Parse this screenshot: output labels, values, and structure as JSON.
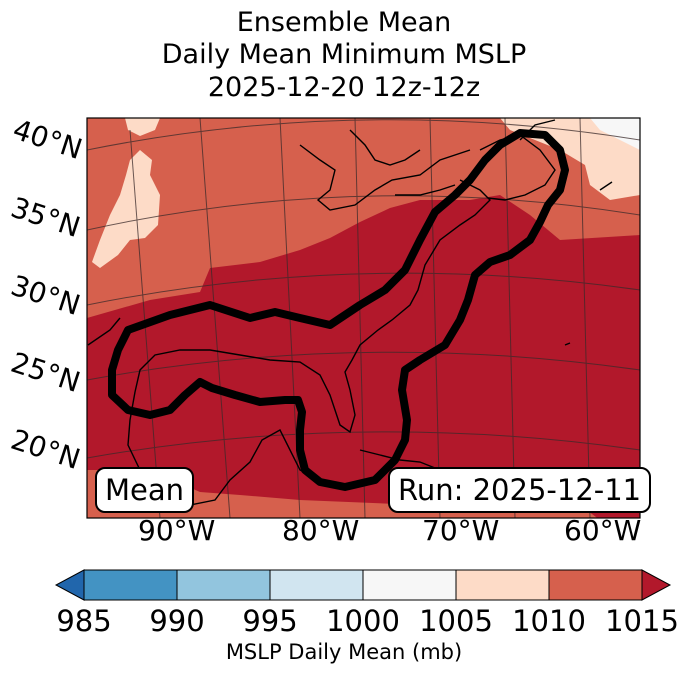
{
  "title": {
    "line1": "Ensemble Mean",
    "line2": "Daily Mean Minimum MSLP",
    "line3": "2025-12-20 12z-12z"
  },
  "map": {
    "lat_labels": [
      "40°N",
      "35°N",
      "30°N",
      "25°N",
      "20°N"
    ],
    "lon_labels": [
      "90°W",
      "80°W",
      "70°W",
      "60°W"
    ],
    "legend_left": "Mean",
    "legend_right": "Run: 2025-12-11",
    "colors": {
      "lt_1015_band": "#b2182b",
      "band_1005_1010": "#fddbc7",
      "band_1010_1015": "#d6604d",
      "over_1015": "#b2182b",
      "contour": "#000000"
    }
  },
  "colorbar": {
    "ticks": [
      "985",
      "990",
      "995",
      "1000",
      "1005",
      "1010",
      "1015"
    ],
    "label": "MSLP Daily Mean (mb)",
    "colors": [
      "#2166ac",
      "#4393c3",
      "#92c5de",
      "#d1e5f0",
      "#f7f7f7",
      "#fddbc7",
      "#d6604d",
      "#b2182b"
    ]
  }
}
